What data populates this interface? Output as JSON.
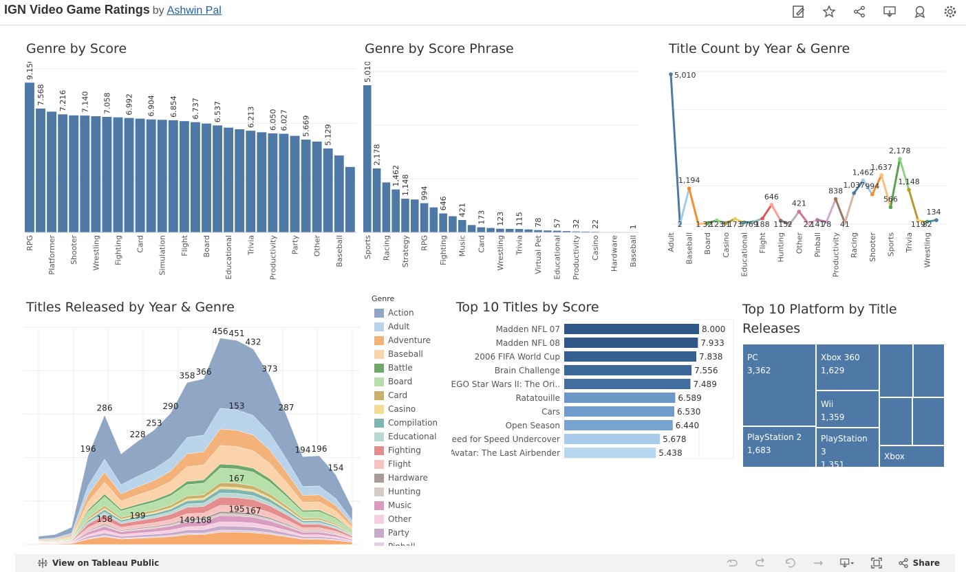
{
  "header": {
    "title": "IGN Video Game Ratings",
    "by": "by",
    "author": "Ashwin Pal",
    "icons": [
      "edit-icon",
      "star-icon",
      "share-icon",
      "download-icon",
      "badge-icon",
      "settings-icon"
    ]
  },
  "sheets": {
    "genre_by_score": "Genre by Score",
    "genre_by_phrase": "Genre by Score Phrase",
    "title_count": "Title Count by Year & Genre",
    "titles_released": "Titles Released by Year & Genre",
    "top10_titles": "Top 10 Titles by Score",
    "top10_platform": "Top 10 Platform by Title Releases"
  },
  "legend": {
    "title": "Genre",
    "items": [
      {
        "name": "Action",
        "color": "#8fa6c4"
      },
      {
        "name": "Adult",
        "color": "#b8d3ea"
      },
      {
        "name": "Adventure",
        "color": "#f3b27a"
      },
      {
        "name": "Baseball",
        "color": "#fbd3aa"
      },
      {
        "name": "Battle",
        "color": "#6fa96a"
      },
      {
        "name": "Board",
        "color": "#b7dfaa"
      },
      {
        "name": "Card",
        "color": "#c9b16a"
      },
      {
        "name": "Casino",
        "color": "#f3dd95"
      },
      {
        "name": "Compilation",
        "color": "#7fb5b0"
      },
      {
        "name": "Educational",
        "color": "#b9d8d4"
      },
      {
        "name": "Fighting",
        "color": "#e58c8c"
      },
      {
        "name": "Flight",
        "color": "#f8c2c0"
      },
      {
        "name": "Hardware",
        "color": "#a89a96"
      },
      {
        "name": "Hunting",
        "color": "#d6ccc6"
      },
      {
        "name": "Music",
        "color": "#d99bc0"
      },
      {
        "name": "Other",
        "color": "#f6cfe1"
      },
      {
        "name": "Party",
        "color": "#c7a9c9"
      },
      {
        "name": "Pinball",
        "color": "#e1cfe0"
      }
    ]
  },
  "chart_data": [
    {
      "type": "bar",
      "title": "Genre by Score",
      "categories": [
        "RPG",
        "",
        "Platformer",
        "",
        "Shooter",
        "",
        "Wrestling",
        "",
        "Fighting",
        "",
        "Card",
        "",
        "Simulation",
        "",
        "Flight",
        "",
        "Board",
        "",
        "Educational",
        "",
        "Trivia",
        "",
        "Productivity",
        "",
        "Party",
        "",
        "Other",
        "",
        "Baseball",
        ""
      ],
      "values": [
        9.15,
        7.568,
        7.38,
        7.216,
        7.15,
        7.14,
        7.1,
        7.058,
        7.03,
        6.992,
        6.95,
        6.904,
        6.88,
        6.854,
        6.8,
        6.737,
        6.65,
        6.537,
        6.4,
        6.3,
        6.213,
        6.12,
        6.05,
        6.027,
        5.9,
        5.669,
        5.55,
        5.129,
        4.7,
        4.0
      ],
      "data_labels": [
        "9.150",
        "7.568",
        "",
        "7.216",
        "",
        "7.140",
        "",
        "7.058",
        "",
        "6.992",
        "",
        "6.904",
        "",
        "6.854",
        "",
        "6.737",
        "",
        "6.537",
        "",
        "",
        "6.213",
        "",
        "6.050",
        "6.027",
        "",
        "5.669",
        "",
        "5.129",
        "",
        ""
      ],
      "ylim": [
        0,
        10
      ]
    },
    {
      "type": "bar",
      "title": "Genre by Score Phrase",
      "categories": [
        "Sports",
        "",
        "Racing",
        "",
        "Strategy",
        "",
        "RPG",
        "",
        "Fighting",
        "",
        "Music",
        "",
        "Card",
        "",
        "Wrestling",
        "",
        "Trivia",
        "",
        "Virtual Pet",
        "",
        "Educational",
        "",
        "Productivity",
        "",
        "Casino",
        "",
        "Hardware",
        "",
        "Baseball"
      ],
      "values": [
        5010,
        2178,
        1700,
        1462,
        1148,
        1120,
        994,
        850,
        646,
        550,
        421,
        250,
        173,
        150,
        123,
        120,
        115,
        100,
        78,
        65,
        57,
        45,
        32,
        27,
        22,
        10,
        5,
        3,
        1
      ],
      "data_labels": [
        "5,010",
        "2,178",
        "",
        "1,462",
        "1,148",
        "",
        "994",
        "",
        "646",
        "",
        "421",
        "",
        "173",
        "",
        "123",
        "",
        "115",
        "",
        "78",
        "",
        "57",
        "",
        "32",
        "",
        "22",
        "",
        "",
        "",
        "1"
      ],
      "ylim": [
        0,
        5800
      ]
    },
    {
      "type": "line",
      "title": "Title Count by Year & Genre",
      "categories": [
        "Adult",
        "",
        "Baseball",
        "",
        "Board",
        "",
        "Casino",
        "",
        "Educational",
        "",
        "Flight",
        "",
        "Hunting",
        "",
        "Other",
        "",
        "Pinball",
        "",
        "Productivity",
        "",
        "Racing",
        "",
        "Shooter",
        "",
        "Sports",
        "",
        "Trivia",
        "",
        "Wrestling"
      ],
      "values": [
        5010,
        2,
        1194,
        1,
        32,
        123,
        31,
        173,
        57,
        69,
        188,
        646,
        115,
        2,
        421,
        22,
        141,
        78,
        838,
        41,
        1037,
        1462,
        994,
        1637,
        566,
        2178,
        1148,
        119,
        82
      ],
      "data_labels": [
        "5,010",
        "2",
        "1,194",
        "1",
        "32",
        "123",
        "31",
        "173",
        "57",
        "69",
        "188",
        "646",
        "115",
        "2",
        "421",
        "22",
        "141",
        "78",
        "838",
        "41",
        "1,037",
        "1,462",
        "994",
        "1,637",
        "566",
        "2,178",
        "1,148",
        "119",
        "82"
      ],
      "extra_end": {
        "value": 134,
        "label": "134"
      },
      "ylim": [
        0,
        5800
      ]
    },
    {
      "type": "area",
      "title": "Titles Released by Year & Genre",
      "totals": [
        18,
        22,
        38,
        196,
        286,
        200,
        228,
        253,
        290,
        358,
        366,
        456,
        451,
        432,
        373,
        287,
        194,
        196,
        154,
        80
      ],
      "annotations": [
        {
          "i": 3,
          "label": "196"
        },
        {
          "i": 4,
          "label": "286"
        },
        {
          "i": 6,
          "label": "228"
        },
        {
          "i": 7,
          "label": "253"
        },
        {
          "i": 8,
          "label": "290"
        },
        {
          "i": 9,
          "label": "358"
        },
        {
          "i": 10,
          "label": "366"
        },
        {
          "i": 11,
          "label": "456"
        },
        {
          "i": 12,
          "label": "451"
        },
        {
          "i": 13,
          "label": "432"
        },
        {
          "i": 14,
          "label": "373"
        },
        {
          "i": 15,
          "label": "287"
        },
        {
          "i": 16,
          "label": "194"
        },
        {
          "i": 17,
          "label": "196"
        },
        {
          "i": 18,
          "label": "154"
        }
      ],
      "inner_labels": [
        {
          "i": 12,
          "v": 300,
          "label": "153"
        },
        {
          "i": 12,
          "v": 140,
          "label": "167"
        },
        {
          "i": 12,
          "v": 72,
          "label": "195"
        },
        {
          "i": 13,
          "v": 68,
          "label": "167"
        },
        {
          "i": 4,
          "v": 50,
          "label": "158"
        },
        {
          "i": 6,
          "v": 58,
          "label": "199"
        },
        {
          "i": 9,
          "v": 48,
          "label": "149"
        },
        {
          "i": 10,
          "v": 48,
          "label": "168"
        }
      ],
      "ylim": [
        0,
        480
      ]
    },
    {
      "type": "bar",
      "title": "Top 10 Titles by Score",
      "categories": [
        "Madden NFL 07",
        "Madden NFL 08",
        "2006 FIFA World Cup",
        "Brain Challenge",
        "LEGO Star Wars II: The Ori..",
        "Ratatouille",
        "Cars",
        "Open Season",
        "Need for Speed Undercover",
        "Avatar: The Last Airbender"
      ],
      "values": [
        8.0,
        7.933,
        7.838,
        7.556,
        7.489,
        6.589,
        6.53,
        6.44,
        5.678,
        5.438
      ],
      "data_labels": [
        "8.000",
        "7.933",
        "7.838",
        "7.556",
        "7.489",
        "6.589",
        "6.530",
        "6.440",
        "5.678",
        "5.438"
      ],
      "colors": [
        "#2f5888",
        "#2f5888",
        "#33608f",
        "#3a6897",
        "#416f9d",
        "#6b98c6",
        "#6f9cca",
        "#77a3cf",
        "#a7cbe9",
        "#b7d7ef"
      ],
      "xlim": [
        0,
        8
      ]
    },
    {
      "type": "table",
      "title": "Top 10 Platform by Title Releases",
      "cells": [
        {
          "name": "PC",
          "value": "3,362"
        },
        {
          "name": "PlayStation 2",
          "value": "1,683"
        },
        {
          "name": "Xbox 360",
          "value": "1,629"
        },
        {
          "name": "Wii",
          "value": "1,359"
        },
        {
          "name": "PlayStation 3",
          "value": "1,351"
        },
        {
          "name": "Xbox",
          "value": ""
        }
      ]
    }
  ],
  "footer": {
    "view_label": "View on Tableau Public",
    "share_label": "Share"
  }
}
